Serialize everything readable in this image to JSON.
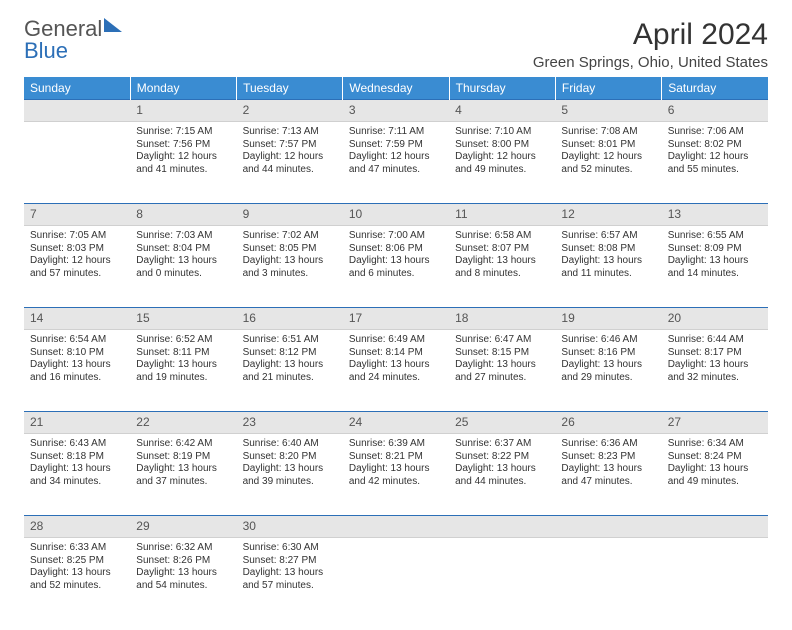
{
  "logo": {
    "line1": "General",
    "line2": "Blue"
  },
  "title": "April 2024",
  "location": "Green Springs, Ohio, United States",
  "header_bg": "#3a8cd2",
  "header_text_color": "#ffffff",
  "daynum_bg": "#e6e6e6",
  "border_color": "#2c6fb7",
  "text_color": "#333333",
  "fontsize_title": 30,
  "fontsize_subtitle": 15,
  "fontsize_header": 12,
  "fontsize_cell": 10,
  "days": [
    "Sunday",
    "Monday",
    "Tuesday",
    "Wednesday",
    "Thursday",
    "Friday",
    "Saturday"
  ],
  "weeks": [
    {
      "nums": [
        "",
        "1",
        "2",
        "3",
        "4",
        "5",
        "6"
      ],
      "cells": [
        {
          "sunrise": "",
          "sunset": "",
          "daylight1": "",
          "daylight2": ""
        },
        {
          "sunrise": "Sunrise: 7:15 AM",
          "sunset": "Sunset: 7:56 PM",
          "daylight1": "Daylight: 12 hours",
          "daylight2": "and 41 minutes."
        },
        {
          "sunrise": "Sunrise: 7:13 AM",
          "sunset": "Sunset: 7:57 PM",
          "daylight1": "Daylight: 12 hours",
          "daylight2": "and 44 minutes."
        },
        {
          "sunrise": "Sunrise: 7:11 AM",
          "sunset": "Sunset: 7:59 PM",
          "daylight1": "Daylight: 12 hours",
          "daylight2": "and 47 minutes."
        },
        {
          "sunrise": "Sunrise: 7:10 AM",
          "sunset": "Sunset: 8:00 PM",
          "daylight1": "Daylight: 12 hours",
          "daylight2": "and 49 minutes."
        },
        {
          "sunrise": "Sunrise: 7:08 AM",
          "sunset": "Sunset: 8:01 PM",
          "daylight1": "Daylight: 12 hours",
          "daylight2": "and 52 minutes."
        },
        {
          "sunrise": "Sunrise: 7:06 AM",
          "sunset": "Sunset: 8:02 PM",
          "daylight1": "Daylight: 12 hours",
          "daylight2": "and 55 minutes."
        }
      ]
    },
    {
      "nums": [
        "7",
        "8",
        "9",
        "10",
        "11",
        "12",
        "13"
      ],
      "cells": [
        {
          "sunrise": "Sunrise: 7:05 AM",
          "sunset": "Sunset: 8:03 PM",
          "daylight1": "Daylight: 12 hours",
          "daylight2": "and 57 minutes."
        },
        {
          "sunrise": "Sunrise: 7:03 AM",
          "sunset": "Sunset: 8:04 PM",
          "daylight1": "Daylight: 13 hours",
          "daylight2": "and 0 minutes."
        },
        {
          "sunrise": "Sunrise: 7:02 AM",
          "sunset": "Sunset: 8:05 PM",
          "daylight1": "Daylight: 13 hours",
          "daylight2": "and 3 minutes."
        },
        {
          "sunrise": "Sunrise: 7:00 AM",
          "sunset": "Sunset: 8:06 PM",
          "daylight1": "Daylight: 13 hours",
          "daylight2": "and 6 minutes."
        },
        {
          "sunrise": "Sunrise: 6:58 AM",
          "sunset": "Sunset: 8:07 PM",
          "daylight1": "Daylight: 13 hours",
          "daylight2": "and 8 minutes."
        },
        {
          "sunrise": "Sunrise: 6:57 AM",
          "sunset": "Sunset: 8:08 PM",
          "daylight1": "Daylight: 13 hours",
          "daylight2": "and 11 minutes."
        },
        {
          "sunrise": "Sunrise: 6:55 AM",
          "sunset": "Sunset: 8:09 PM",
          "daylight1": "Daylight: 13 hours",
          "daylight2": "and 14 minutes."
        }
      ]
    },
    {
      "nums": [
        "14",
        "15",
        "16",
        "17",
        "18",
        "19",
        "20"
      ],
      "cells": [
        {
          "sunrise": "Sunrise: 6:54 AM",
          "sunset": "Sunset: 8:10 PM",
          "daylight1": "Daylight: 13 hours",
          "daylight2": "and 16 minutes."
        },
        {
          "sunrise": "Sunrise: 6:52 AM",
          "sunset": "Sunset: 8:11 PM",
          "daylight1": "Daylight: 13 hours",
          "daylight2": "and 19 minutes."
        },
        {
          "sunrise": "Sunrise: 6:51 AM",
          "sunset": "Sunset: 8:12 PM",
          "daylight1": "Daylight: 13 hours",
          "daylight2": "and 21 minutes."
        },
        {
          "sunrise": "Sunrise: 6:49 AM",
          "sunset": "Sunset: 8:14 PM",
          "daylight1": "Daylight: 13 hours",
          "daylight2": "and 24 minutes."
        },
        {
          "sunrise": "Sunrise: 6:47 AM",
          "sunset": "Sunset: 8:15 PM",
          "daylight1": "Daylight: 13 hours",
          "daylight2": "and 27 minutes."
        },
        {
          "sunrise": "Sunrise: 6:46 AM",
          "sunset": "Sunset: 8:16 PM",
          "daylight1": "Daylight: 13 hours",
          "daylight2": "and 29 minutes."
        },
        {
          "sunrise": "Sunrise: 6:44 AM",
          "sunset": "Sunset: 8:17 PM",
          "daylight1": "Daylight: 13 hours",
          "daylight2": "and 32 minutes."
        }
      ]
    },
    {
      "nums": [
        "21",
        "22",
        "23",
        "24",
        "25",
        "26",
        "27"
      ],
      "cells": [
        {
          "sunrise": "Sunrise: 6:43 AM",
          "sunset": "Sunset: 8:18 PM",
          "daylight1": "Daylight: 13 hours",
          "daylight2": "and 34 minutes."
        },
        {
          "sunrise": "Sunrise: 6:42 AM",
          "sunset": "Sunset: 8:19 PM",
          "daylight1": "Daylight: 13 hours",
          "daylight2": "and 37 minutes."
        },
        {
          "sunrise": "Sunrise: 6:40 AM",
          "sunset": "Sunset: 8:20 PM",
          "daylight1": "Daylight: 13 hours",
          "daylight2": "and 39 minutes."
        },
        {
          "sunrise": "Sunrise: 6:39 AM",
          "sunset": "Sunset: 8:21 PM",
          "daylight1": "Daylight: 13 hours",
          "daylight2": "and 42 minutes."
        },
        {
          "sunrise": "Sunrise: 6:37 AM",
          "sunset": "Sunset: 8:22 PM",
          "daylight1": "Daylight: 13 hours",
          "daylight2": "and 44 minutes."
        },
        {
          "sunrise": "Sunrise: 6:36 AM",
          "sunset": "Sunset: 8:23 PM",
          "daylight1": "Daylight: 13 hours",
          "daylight2": "and 47 minutes."
        },
        {
          "sunrise": "Sunrise: 6:34 AM",
          "sunset": "Sunset: 8:24 PM",
          "daylight1": "Daylight: 13 hours",
          "daylight2": "and 49 minutes."
        }
      ]
    },
    {
      "nums": [
        "28",
        "29",
        "30",
        "",
        "",
        "",
        ""
      ],
      "cells": [
        {
          "sunrise": "Sunrise: 6:33 AM",
          "sunset": "Sunset: 8:25 PM",
          "daylight1": "Daylight: 13 hours",
          "daylight2": "and 52 minutes."
        },
        {
          "sunrise": "Sunrise: 6:32 AM",
          "sunset": "Sunset: 8:26 PM",
          "daylight1": "Daylight: 13 hours",
          "daylight2": "and 54 minutes."
        },
        {
          "sunrise": "Sunrise: 6:30 AM",
          "sunset": "Sunset: 8:27 PM",
          "daylight1": "Daylight: 13 hours",
          "daylight2": "and 57 minutes."
        },
        {
          "sunrise": "",
          "sunset": "",
          "daylight1": "",
          "daylight2": ""
        },
        {
          "sunrise": "",
          "sunset": "",
          "daylight1": "",
          "daylight2": ""
        },
        {
          "sunrise": "",
          "sunset": "",
          "daylight1": "",
          "daylight2": ""
        },
        {
          "sunrise": "",
          "sunset": "",
          "daylight1": "",
          "daylight2": ""
        }
      ]
    }
  ]
}
